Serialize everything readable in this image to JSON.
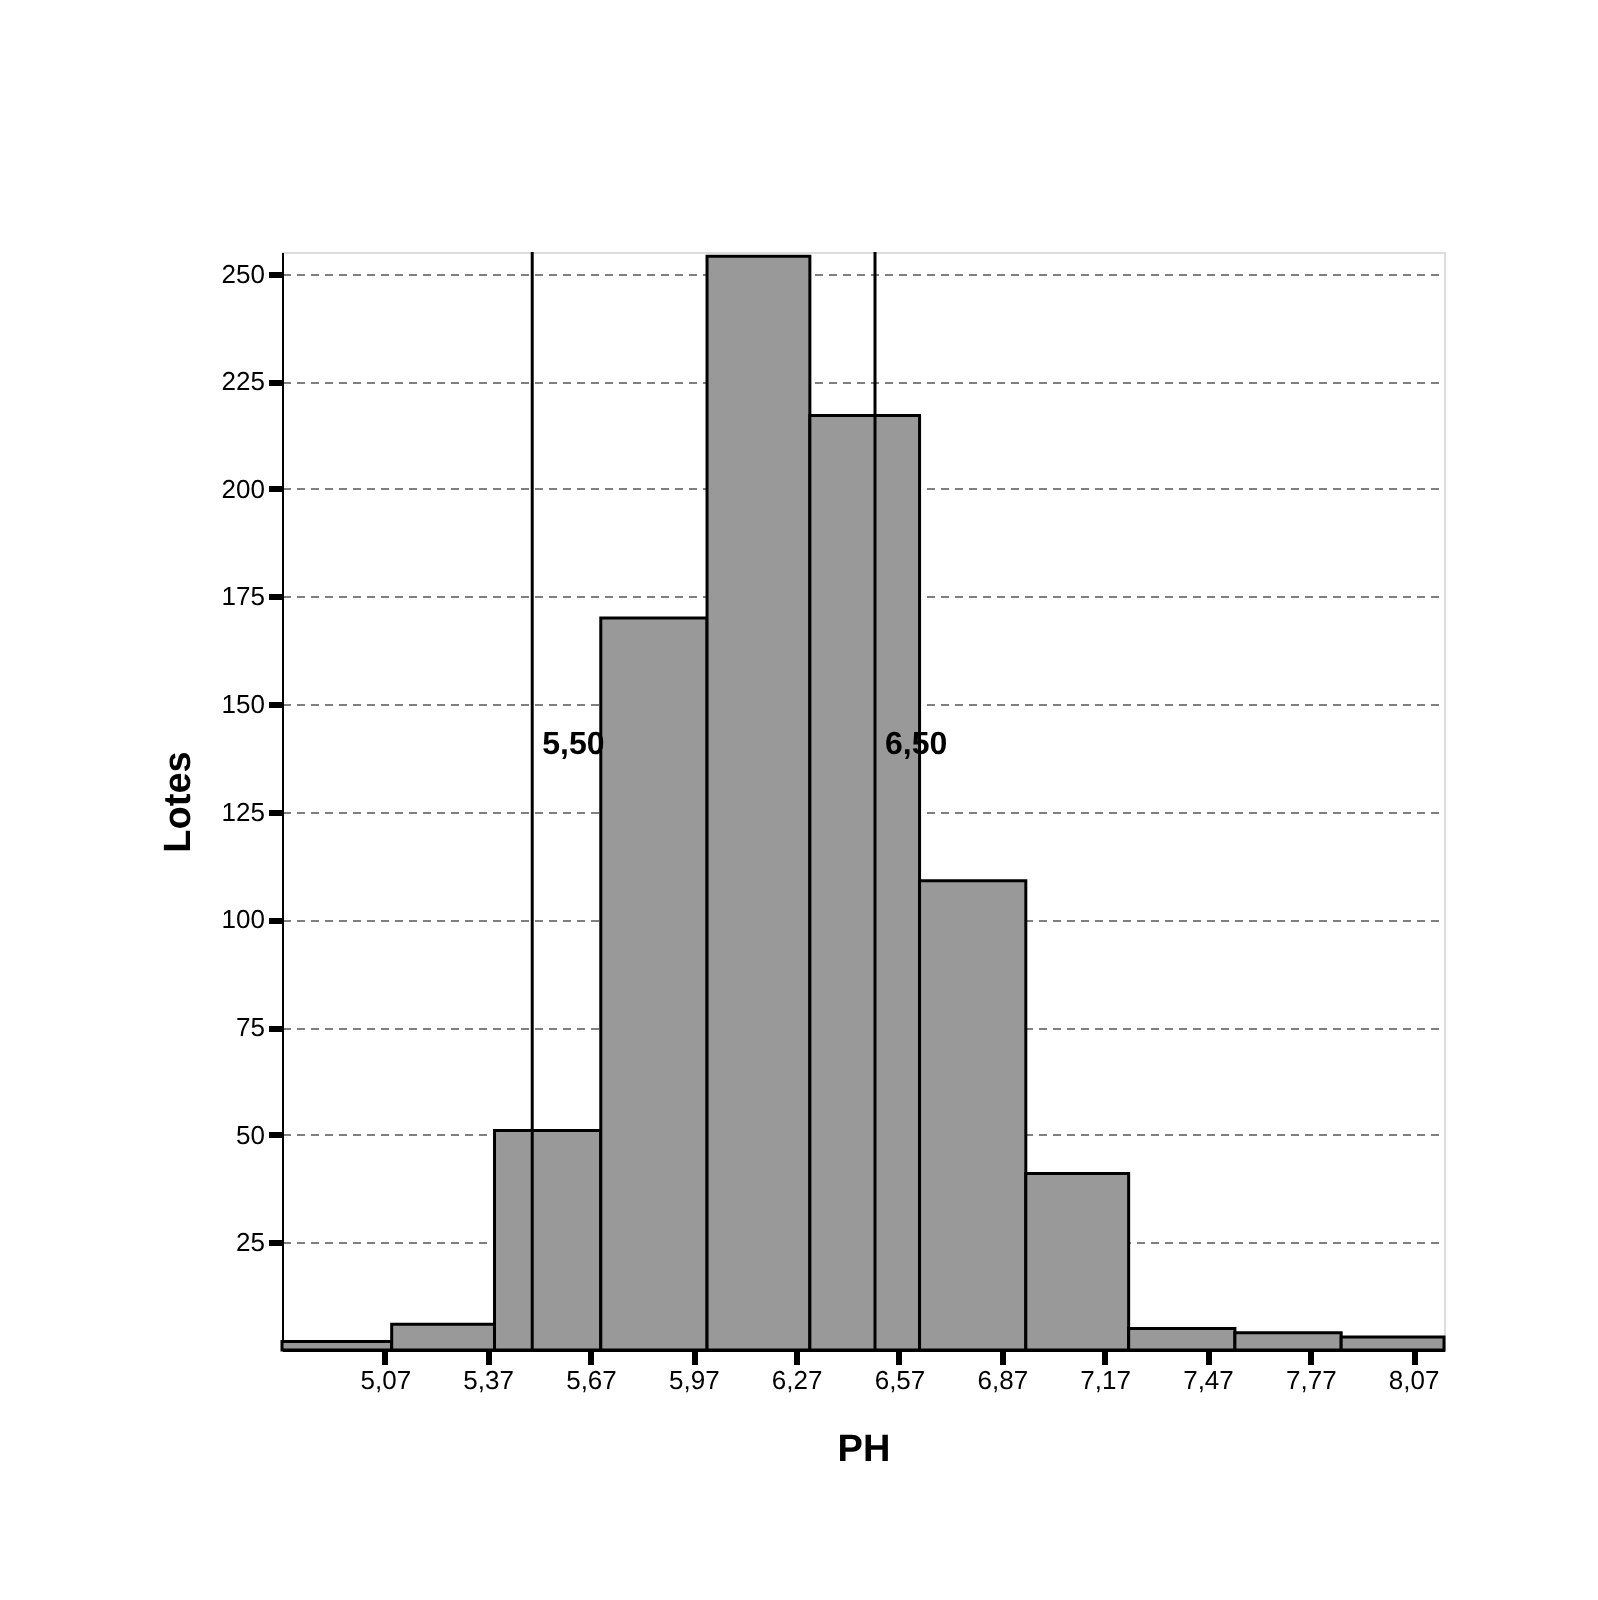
{
  "chart_data": {
    "type": "histogram",
    "xlabel": "PH",
    "ylabel": "Lotes",
    "bins": [
      4.77,
      5.09,
      5.39,
      5.7,
      6.01,
      6.31,
      6.63,
      6.94,
      7.24,
      7.55,
      7.86,
      8.16
    ],
    "values": [
      2,
      6,
      51,
      170,
      254,
      217,
      109,
      41,
      5,
      4,
      3
    ],
    "color": "#999999",
    "xlim": [
      4.77,
      8.16
    ],
    "xticks": [
      {
        "value": 5.07,
        "label": "5,07"
      },
      {
        "value": 5.37,
        "label": "5,37"
      },
      {
        "value": 5.67,
        "label": "5,67"
      },
      {
        "value": 5.97,
        "label": "5,97"
      },
      {
        "value": 6.27,
        "label": "6,27"
      },
      {
        "value": 6.57,
        "label": "6,57"
      },
      {
        "value": 6.87,
        "label": "6,87"
      },
      {
        "value": 7.17,
        "label": "7,17"
      },
      {
        "value": 7.47,
        "label": "7,47"
      },
      {
        "value": 7.77,
        "label": "7,77"
      },
      {
        "value": 8.07,
        "label": "8,07"
      }
    ],
    "ylim": [
      0,
      255
    ],
    "yticks": [
      25,
      50,
      75,
      100,
      125,
      150,
      175,
      200,
      225,
      250
    ],
    "grid": "y",
    "ref_lines": [
      {
        "axis": "x",
        "value": 5.5,
        "label": "5,50",
        "color": "#000000"
      },
      {
        "axis": "x",
        "value": 6.5,
        "label": "6,50",
        "color": "#000000"
      }
    ]
  }
}
